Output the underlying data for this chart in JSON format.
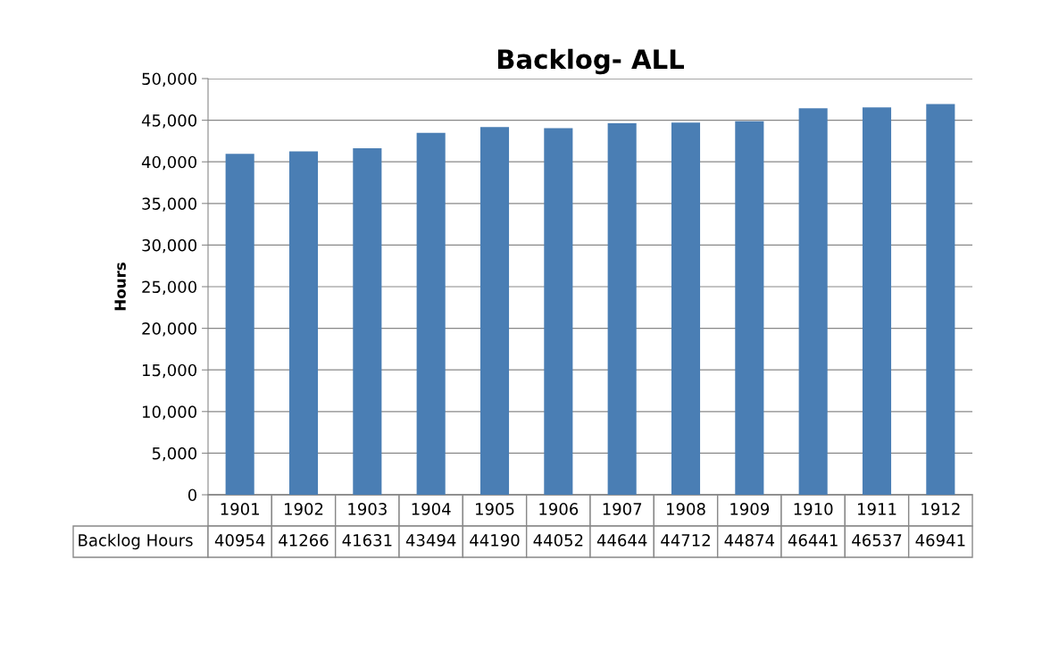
{
  "chart_data": {
    "type": "bar",
    "title": "Backlog- ALL",
    "ylabel": "Hours",
    "categories": [
      "1901",
      "1902",
      "1903",
      "1904",
      "1905",
      "1906",
      "1907",
      "1908",
      "1909",
      "1910",
      "1911",
      "1912"
    ],
    "series": [
      {
        "name": "Backlog Hours",
        "color": "#4a7eb4",
        "values": [
          40954,
          41266,
          41631,
          43494,
          44190,
          44052,
          44644,
          44712,
          44874,
          46441,
          46537,
          46941
        ]
      }
    ],
    "ylim": [
      0,
      50000
    ],
    "yticks": [
      0,
      {
        "value": 5000,
        "label": "5,000"
      },
      {
        "value": 10000,
        "label": "10,000"
      },
      {
        "value": 15000,
        "label": "15,000"
      },
      {
        "value": 20000,
        "label": "20,000"
      },
      {
        "value": 25000,
        "label": "25,000"
      },
      {
        "value": 30000,
        "label": "30,000"
      },
      {
        "value": 35000,
        "label": "35,000"
      },
      {
        "value": 40000,
        "label": "40,000"
      },
      {
        "value": 45000,
        "label": "45,000"
      },
      {
        "value": 50000,
        "label": "50,000"
      }
    ],
    "grid": "y",
    "legend": false,
    "data_labels": true
  }
}
